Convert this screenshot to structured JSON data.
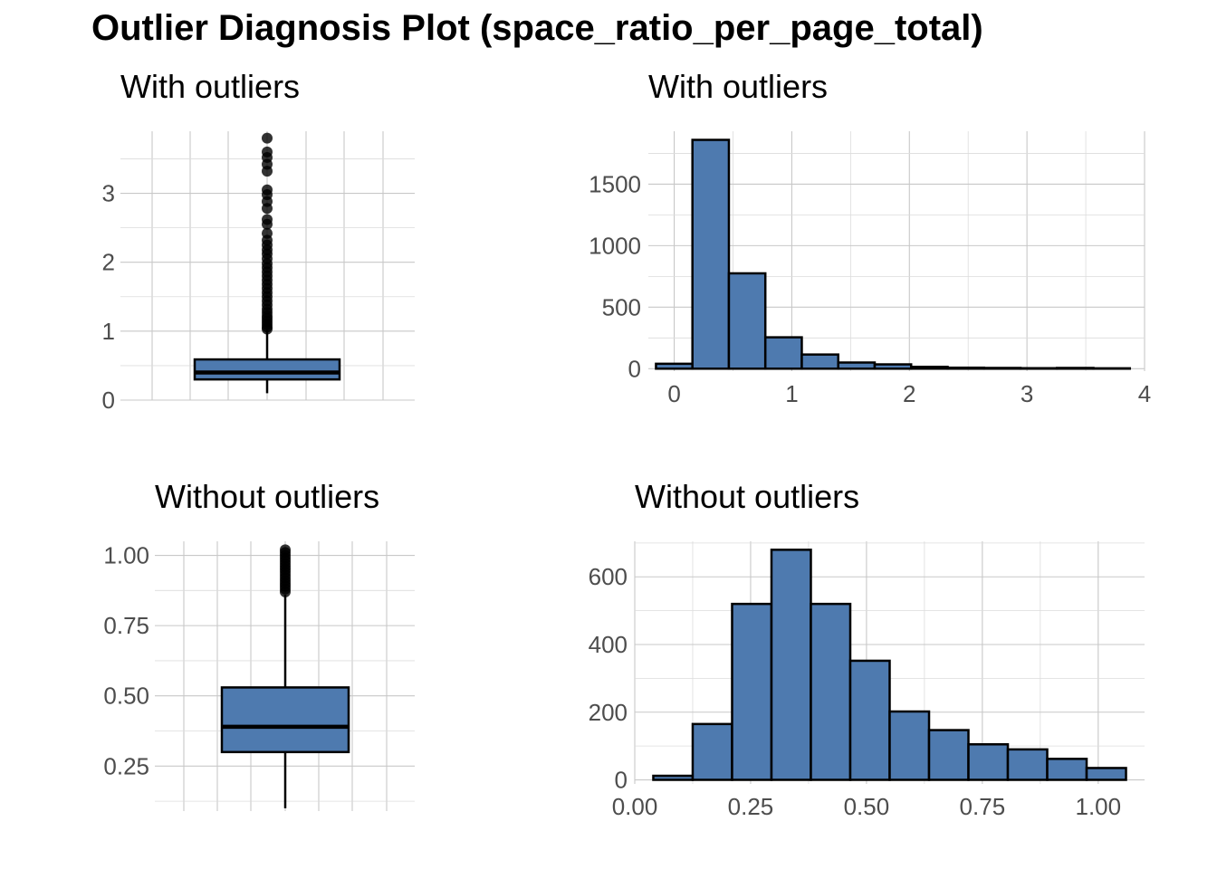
{
  "title": "Outlier Diagnosis Plot (space_ratio_per_page_total)",
  "colors": {
    "fill": "#4e7aaf",
    "outline": "#000000",
    "grid": "#c8c8c8",
    "tick_text": "#4d4d4d"
  },
  "chart_data": [
    {
      "type": "box",
      "title": "With outliers",
      "ylim": [
        0,
        3.9
      ],
      "yticks": [
        0,
        1,
        2,
        3
      ],
      "box": {
        "whisker_low": 0.1,
        "q1": 0.3,
        "median": 0.4,
        "q3": 0.59,
        "whisker_high": 1.02
      },
      "outliers": [
        1.03,
        1.06,
        1.1,
        1.14,
        1.18,
        1.22,
        1.27,
        1.32,
        1.38,
        1.44,
        1.5,
        1.56,
        1.62,
        1.68,
        1.74,
        1.8,
        1.86,
        1.92,
        1.98,
        2.05,
        2.12,
        2.18,
        2.25,
        2.32,
        2.42,
        2.55,
        2.62,
        2.78,
        2.88,
        2.98,
        3.05,
        3.32,
        3.42,
        3.52,
        3.6,
        3.8
      ]
    },
    {
      "type": "bar",
      "title": "With outliers",
      "xlim": [
        -0.22,
        4.0
      ],
      "ylim": [
        -20,
        1930
      ],
      "xticks": [
        0,
        1,
        2,
        3,
        4
      ],
      "yticks": [
        0,
        500,
        1000,
        1500
      ],
      "bin_edges": [
        -0.155,
        0.155,
        0.465,
        0.775,
        1.085,
        1.395,
        1.705,
        2.015,
        2.325,
        2.635,
        2.945,
        3.255,
        3.565,
        3.875
      ],
      "values": [
        40,
        1860,
        775,
        255,
        115,
        50,
        35,
        15,
        8,
        6,
        4,
        6,
        3
      ]
    },
    {
      "type": "box",
      "title": "Without outliers",
      "ylim": [
        0.09,
        1.05
      ],
      "yticks": [
        0.25,
        0.5,
        0.75,
        1.0
      ],
      "tick_labels": [
        "0.25",
        "0.50",
        "0.75",
        "1.00"
      ],
      "box": {
        "whisker_low": 0.1,
        "q1": 0.3,
        "median": 0.39,
        "q3": 0.53,
        "whisker_high": 0.86
      },
      "outliers": [
        0.87,
        0.88,
        0.89,
        0.9,
        0.91,
        0.92,
        0.93,
        0.94,
        0.95,
        0.96,
        0.97,
        0.98,
        0.99,
        1.0,
        1.01,
        1.02
      ]
    },
    {
      "type": "bar",
      "title": "Without outliers",
      "xlim": [
        0.0,
        1.1
      ],
      "ylim": [
        -12,
        705
      ],
      "xticks": [
        0.0,
        0.25,
        0.5,
        0.75,
        1.0
      ],
      "tick_labels": [
        "0.00",
        "0.25",
        "0.50",
        "0.75",
        "1.00"
      ],
      "yticks": [
        0,
        200,
        400,
        600
      ],
      "bin_edges": [
        0.04,
        0.125,
        0.21,
        0.295,
        0.38,
        0.465,
        0.55,
        0.635,
        0.72,
        0.805,
        0.89,
        0.975,
        1.06
      ],
      "values": [
        12,
        165,
        520,
        680,
        520,
        352,
        202,
        147,
        105,
        90,
        62,
        35
      ]
    }
  ]
}
